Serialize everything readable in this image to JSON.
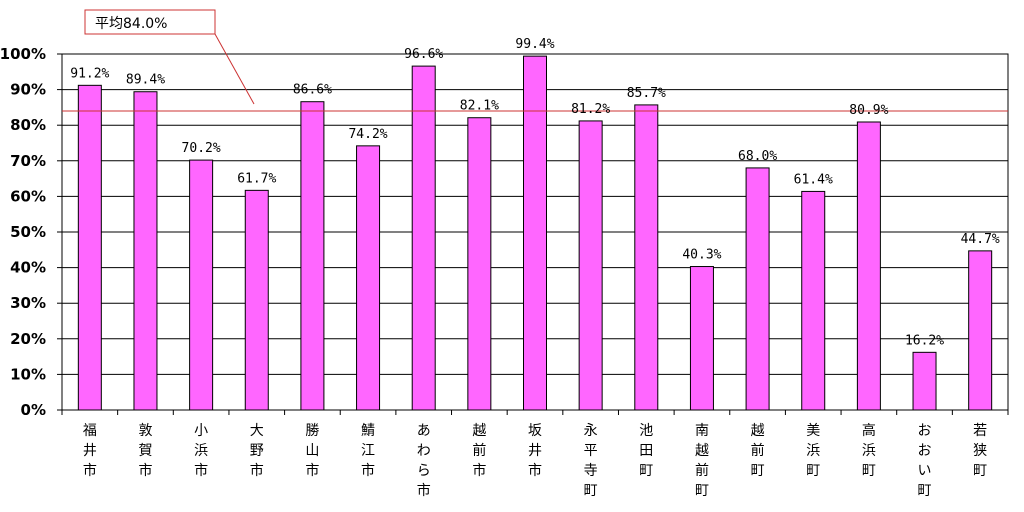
{
  "chart_data": {
    "type": "bar",
    "categories": [
      "福井市",
      "敦賀市",
      "小浜市",
      "大野市",
      "勝山市",
      "鯖江市",
      "あわら市",
      "越前市",
      "坂井市",
      "永平寺町",
      "池田町",
      "南越前町",
      "越前町",
      "美浜町",
      "高浜町",
      "おおい町",
      "若狭町"
    ],
    "values": [
      91.2,
      89.4,
      70.2,
      61.7,
      86.6,
      74.2,
      96.6,
      82.1,
      99.4,
      81.2,
      85.7,
      40.3,
      68.0,
      61.4,
      80.9,
      16.2,
      44.7
    ],
    "data_labels": [
      "91.2%",
      "89.4%",
      "70.2%",
      "61.7%",
      "86.6%",
      "74.2%",
      "96.6%",
      "82.1%",
      "99.4%",
      "81.2%",
      "85.7%",
      "40.3%",
      "68.0%",
      "61.4%",
      "80.9%",
      "16.2%",
      "44.7%"
    ],
    "yticks": [
      0,
      10,
      20,
      30,
      40,
      50,
      60,
      70,
      80,
      90,
      100
    ],
    "ytick_labels": [
      "0%",
      "10%",
      "20%",
      "30%",
      "40%",
      "50%",
      "60%",
      "70%",
      "80%",
      "90%",
      "100%"
    ],
    "ylim": [
      0,
      100
    ],
    "grid": true,
    "average": {
      "value": 84.0,
      "label": "平均84.0%"
    },
    "colors": {
      "bar": "#ff66ff",
      "bar_edge": "#000000",
      "average_line": "#cc3333",
      "grid": "#000000"
    }
  }
}
